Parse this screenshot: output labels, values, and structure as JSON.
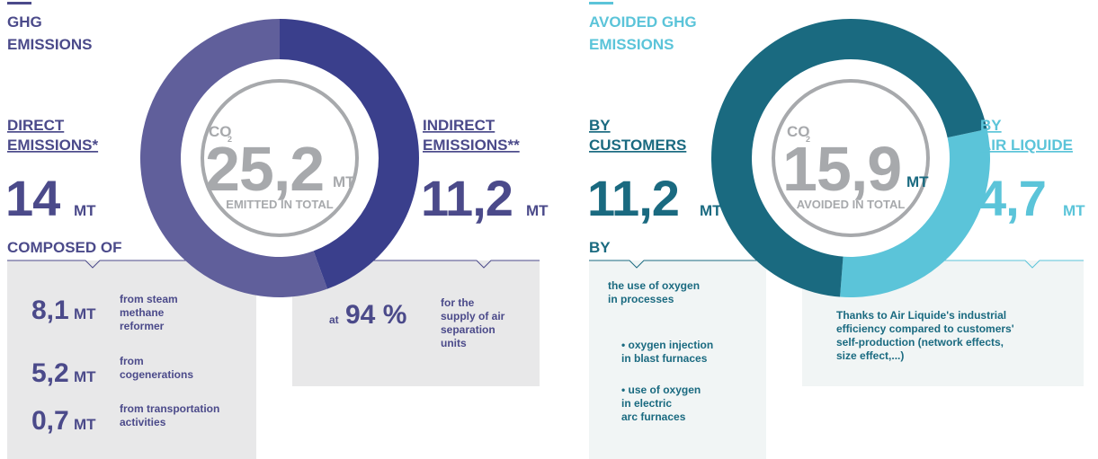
{
  "left": {
    "header": [
      "GHG",
      "EMISSIONS"
    ],
    "total": {
      "co2": "CO",
      "sub": "2",
      "value": "25,2",
      "unit": "MT",
      "caption": "EMITTED IN TOTAL"
    },
    "direct": {
      "title": [
        "DIRECT",
        "EMISSIONS*"
      ],
      "value": "14",
      "unit": "MT",
      "composed": "COMPOSED OF",
      "items": [
        {
          "value": "8,1",
          "unit": "MT",
          "text": [
            "from steam",
            "methane",
            "reformer"
          ]
        },
        {
          "value": "5,2",
          "unit": "MT",
          "text": [
            "from",
            "cogenerations"
          ]
        },
        {
          "value": "0,7",
          "unit": "MT",
          "text": [
            "from transportation",
            "activities"
          ]
        }
      ]
    },
    "indirect": {
      "title": [
        "INDIRECT",
        "EMISSIONS**"
      ],
      "value": "11,2",
      "unit": "MT",
      "share_prefix": "at",
      "share": "94 %",
      "share_text": [
        "for the",
        "supply of air",
        "separation",
        "units"
      ]
    }
  },
  "right": {
    "header": [
      "AVOIDED GHG",
      "EMISSIONS"
    ],
    "total": {
      "co2": "CO",
      "sub": "2",
      "value": "15,9",
      "unit": "MT",
      "caption": "AVOIDED IN TOTAL"
    },
    "customers": {
      "title": [
        "BY",
        "CUSTOMERS"
      ],
      "value": "11,2",
      "unit": "MT",
      "by": "BY",
      "text": [
        "the use of oxygen",
        "in processes"
      ],
      "bullets": [
        [
          "• oxygen injection",
          "in blast furnaces"
        ],
        [
          "• use of oxygen",
          "in electric",
          "arc furnaces"
        ]
      ]
    },
    "airliquide": {
      "title": [
        "BY",
        "AIR LIQUIDE"
      ],
      "value": "4,7",
      "unit": "MT",
      "text": [
        "Thanks to Air Liquide's industrial",
        "efficiency compared to customers'",
        "self-production (network effects,",
        "size effect,...)"
      ]
    }
  }
}
